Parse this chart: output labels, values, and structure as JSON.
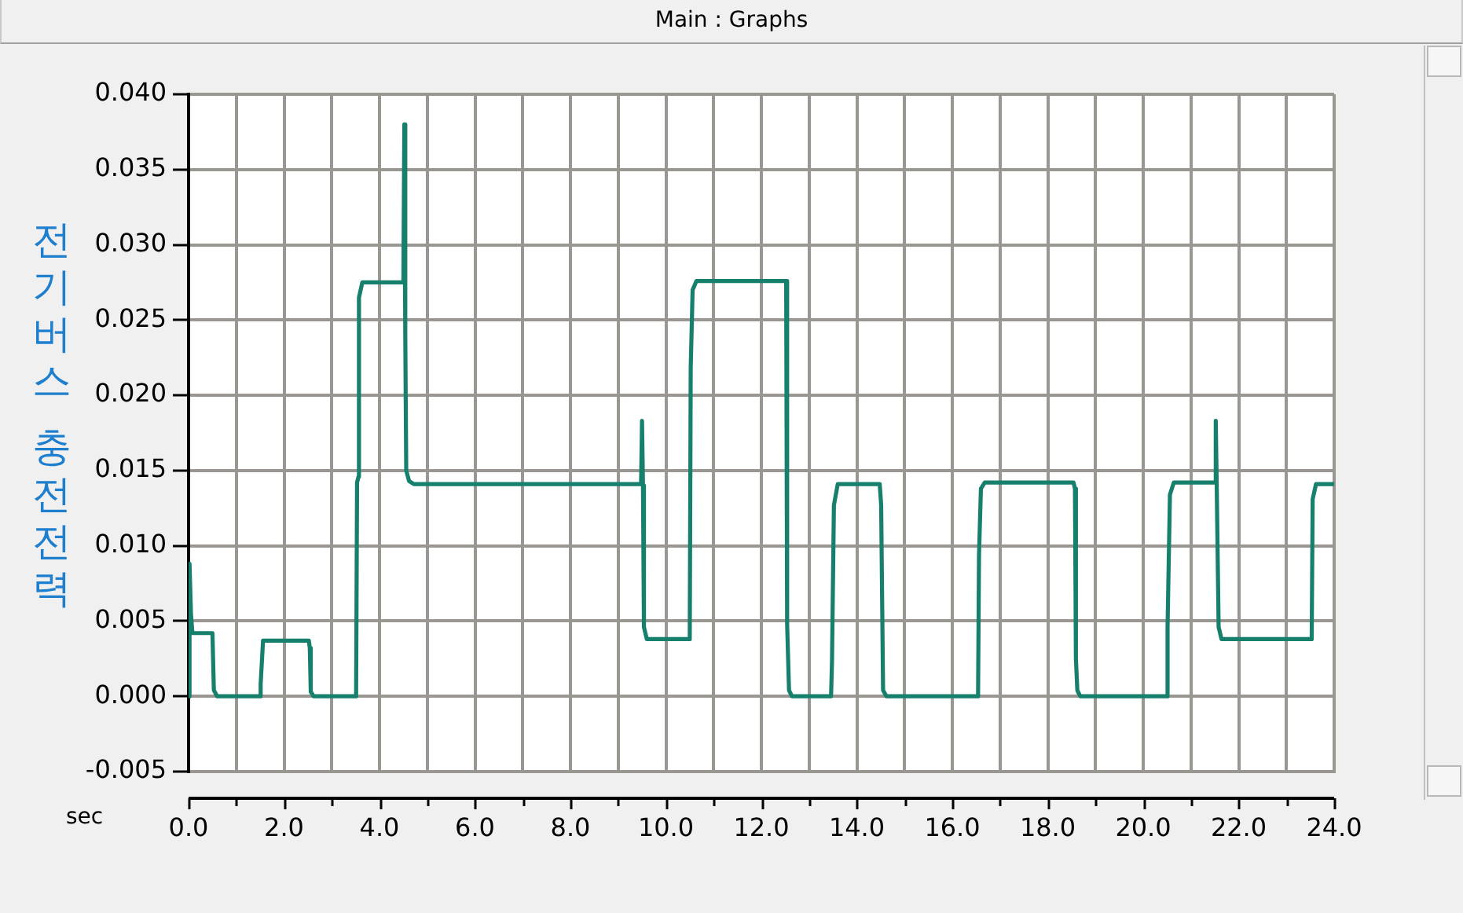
{
  "chart_data": {
    "type": "line",
    "title": "Main : Graphs",
    "xlabel": "sec",
    "ylabel": "전기버스 충전전력",
    "x": [
      0,
      0.02,
      0.05,
      0.08,
      0.5,
      0.53,
      0.6,
      1.49,
      1.51,
      1.56,
      2.52,
      2.54,
      2.56,
      2.62,
      3.51,
      3.53,
      3.56,
      3.57,
      3.64,
      4.5,
      4.52,
      4.54,
      4.56,
      4.62,
      4.72,
      9.48,
      9.5,
      9.52,
      9.54,
      9.6,
      10.5,
      10.52,
      10.56,
      10.64,
      12.52,
      12.54,
      12.58,
      12.64,
      13.46,
      13.48,
      13.52,
      13.6,
      14.48,
      14.51,
      14.55,
      14.62,
      16.54,
      16.56,
      16.6,
      16.68,
      18.54,
      18.57,
      18.59,
      18.62,
      18.68,
      20.49,
      20.51,
      20.56,
      20.64,
      21.5,
      21.52,
      21.54,
      21.58,
      21.64,
      23.53,
      23.55,
      23.62,
      24
    ],
    "values": [
      0,
      0.0088,
      0.0055,
      0.0042,
      0.0042,
      0.0004,
      0,
      0,
      0.0008,
      0.0037,
      0.0037,
      0.0032,
      0.0003,
      0,
      0,
      0.0142,
      0.0146,
      0.0265,
      0.0275,
      0.0275,
      0.038,
      0.024,
      0.015,
      0.0143,
      0.0141,
      0.0141,
      0.0183,
      0.014,
      0.0046,
      0.0038,
      0.0038,
      0.0218,
      0.027,
      0.0276,
      0.0276,
      0.0048,
      0.0004,
      0,
      0,
      0.0023,
      0.0127,
      0.0141,
      0.0141,
      0.0127,
      0.0004,
      0,
      0,
      0.0094,
      0.0138,
      0.0142,
      0.0142,
      0.0138,
      0.0025,
      0.0004,
      0,
      0,
      0.0046,
      0.0134,
      0.0142,
      0.0142,
      0.0183,
      0.014,
      0.0046,
      0.0038,
      0.0038,
      0.0131,
      0.0141,
      0.0141
    ],
    "color": "#17806d",
    "xlim": [
      0,
      24
    ],
    "xticks": [
      {
        "value": 0,
        "label": "0.0"
      },
      {
        "value": 1,
        "label": null
      },
      {
        "value": 2,
        "label": "2.0"
      },
      {
        "value": 3,
        "label": null
      },
      {
        "value": 4,
        "label": "4.0"
      },
      {
        "value": 5,
        "label": null
      },
      {
        "value": 6,
        "label": "6.0"
      },
      {
        "value": 7,
        "label": null
      },
      {
        "value": 8,
        "label": "8.0"
      },
      {
        "value": 9,
        "label": null
      },
      {
        "value": 10,
        "label": "10.0"
      },
      {
        "value": 11,
        "label": null
      },
      {
        "value": 12,
        "label": "12.0"
      },
      {
        "value": 13,
        "label": null
      },
      {
        "value": 14,
        "label": "14.0"
      },
      {
        "value": 15,
        "label": null
      },
      {
        "value": 16,
        "label": "16.0"
      },
      {
        "value": 17,
        "label": null
      },
      {
        "value": 18,
        "label": "18.0"
      },
      {
        "value": 19,
        "label": null
      },
      {
        "value": 20,
        "label": "20.0"
      },
      {
        "value": 21,
        "label": null
      },
      {
        "value": 22,
        "label": "22.0"
      },
      {
        "value": 23,
        "label": null
      },
      {
        "value": 24,
        "label": "24.0"
      }
    ],
    "ylim": [
      -0.005,
      0.04
    ],
    "yticks": [
      -0.005,
      {
        "value": 0,
        "label": "0.000"
      },
      0.005,
      {
        "value": 0.01,
        "label": "0.010"
      },
      0.015,
      {
        "value": 0.02,
        "label": "0.020"
      },
      0.025,
      {
        "value": 0.03,
        "label": "0.030"
      },
      0.035,
      {
        "value": 0.04,
        "label": "0.040"
      }
    ],
    "grid": true
  }
}
